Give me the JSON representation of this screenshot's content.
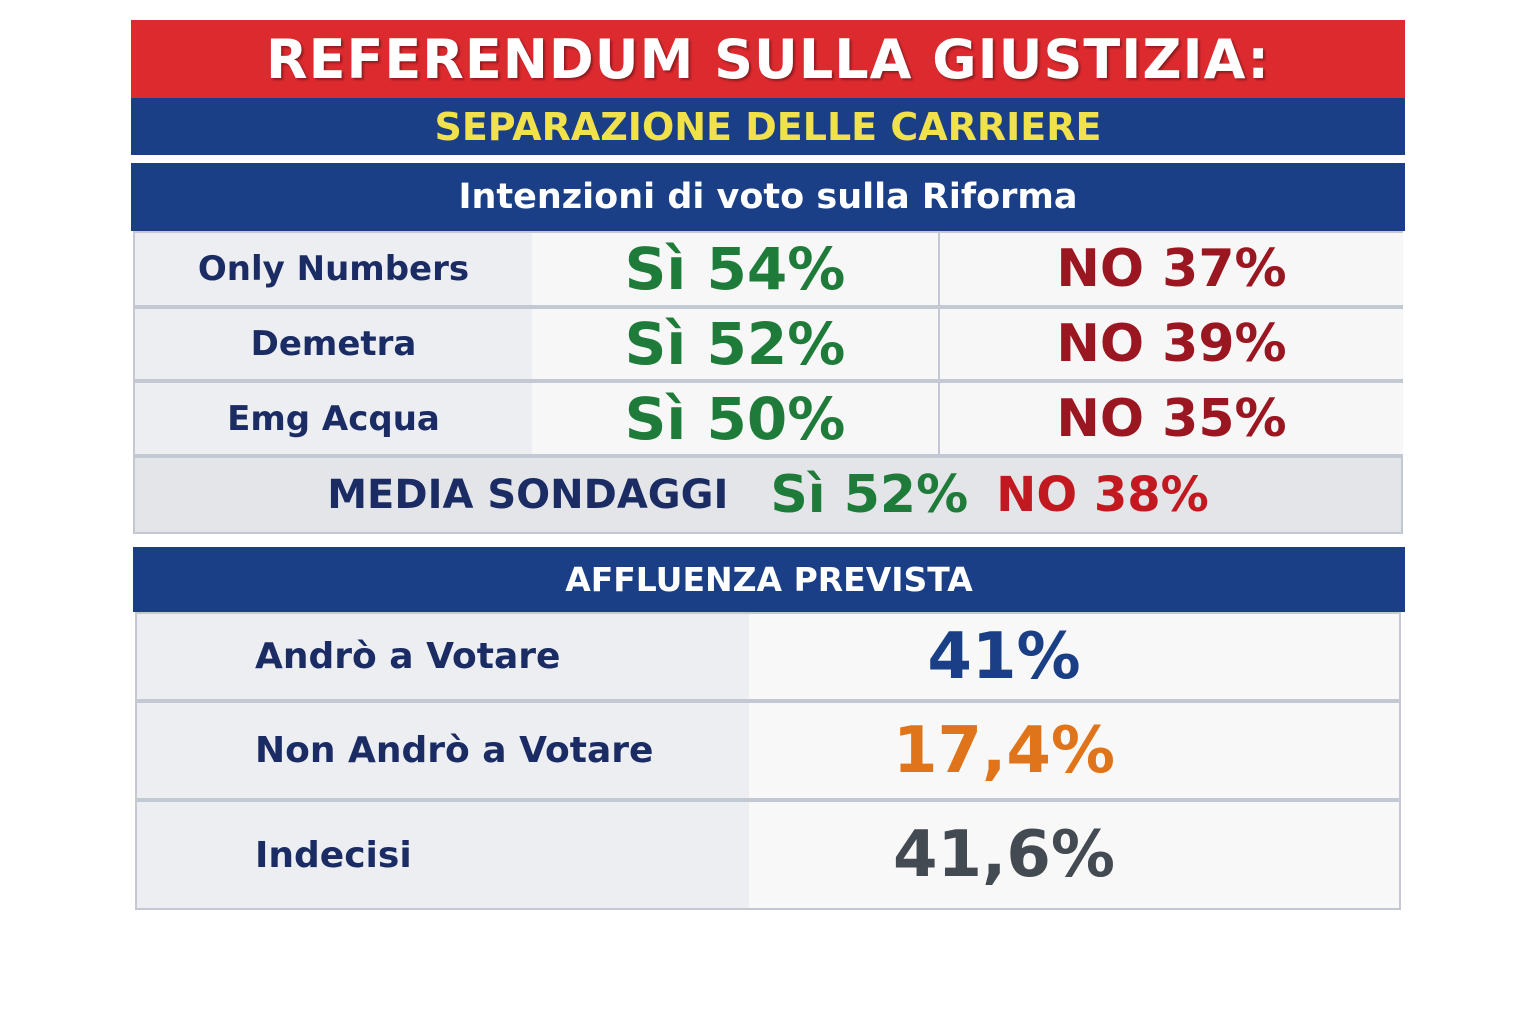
{
  "header": {
    "title": "REFERENDUM SULLA GIUSTIZIA:",
    "subtitle": "SEPARAZIONE DELLE CARRIERE"
  },
  "polls": {
    "header": "Intenzioni di voto sulla Riforma",
    "rows": [
      {
        "name": "Only Numbers",
        "si": "Sì 54%",
        "no": "NO 37%"
      },
      {
        "name": "Demetra",
        "si": "Sì 52%",
        "no": "NO 39%"
      },
      {
        "name": "Emg Acqua",
        "si": "Sì 50%",
        "no": "NO 35%"
      }
    ],
    "average": {
      "label": "MEDIA SONDAGGI",
      "si": "Sì 52%",
      "no": "NO 38%"
    }
  },
  "turnout": {
    "header": "AFFLUENZA PREVISTA",
    "rows": [
      {
        "label": "Andrò a Votare",
        "value": "41%",
        "color": "#1a3f86"
      },
      {
        "label": "Non Andrò a Votare",
        "value": "17,4%",
        "color": "#e0741a"
      },
      {
        "label": "Indecisi",
        "value": "41,6%",
        "color": "#444a52"
      }
    ]
  },
  "colors": {
    "red_band": "#dc2a2f",
    "blue_band": "#1a3f86",
    "yellow_text": "#f1e14a",
    "si_green": "#1f7b3a",
    "no_red": "#9a1620"
  },
  "chart_data": {
    "type": "table",
    "title": "REFERENDUM SULLA GIUSTIZIA:",
    "subtitle": "SEPARAZIONE DELLE CARRIERE",
    "tables": [
      {
        "heading": "Intenzioni di voto sulla Riforma",
        "columns": [
          "",
          "Sì",
          "NO"
        ],
        "rows": [
          {
            "name": "Only Numbers",
            "si": 54,
            "no": 37
          },
          {
            "name": "Demetra",
            "si": 52,
            "no": 39
          },
          {
            "name": "Emg Acqua",
            "si": 50,
            "no": 35
          },
          {
            "name": "MEDIA SONDAGGI",
            "si": 52,
            "no": 38
          }
        ]
      },
      {
        "heading": "AFFLUENZA PREVISTA",
        "rows": [
          {
            "name": "Andrò a Votare",
            "value": 41
          },
          {
            "name": "Non Andrò a Votare",
            "value": 17.4
          },
          {
            "name": "Indecisi",
            "value": 41.6
          }
        ]
      }
    ]
  }
}
